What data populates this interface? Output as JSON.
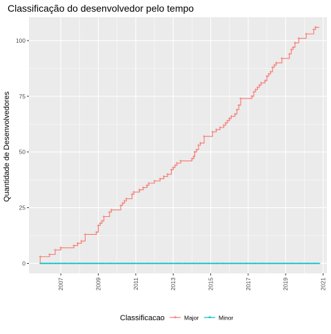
{
  "chart_data": {
    "type": "line",
    "title": "Classificação do desenvolvedor pelo tempo",
    "xlabel": "",
    "ylabel": "Quantidade de Desenvolvedores",
    "xlim": [
      2005.3,
      2021.2
    ],
    "ylim": [
      -4.5,
      110.5
    ],
    "x_ticks": [
      "2007",
      "2009",
      "2011",
      "2013",
      "2015",
      "2017",
      "2019",
      "2021"
    ],
    "y_ticks": [
      "0",
      "25",
      "50",
      "75",
      "100"
    ],
    "grid": true,
    "legend": {
      "title": "Classificacao",
      "position": "bottom"
    },
    "series": [
      {
        "name": "Major",
        "color": "#F8766D",
        "points": [
          [
            2005.9,
            0
          ],
          [
            2005.9,
            3
          ],
          [
            2006.4,
            3
          ],
          [
            2006.4,
            4
          ],
          [
            2006.7,
            4
          ],
          [
            2006.7,
            6
          ],
          [
            2007.0,
            6
          ],
          [
            2007.0,
            7
          ],
          [
            2007.7,
            7
          ],
          [
            2007.7,
            8
          ],
          [
            2007.9,
            8
          ],
          [
            2007.9,
            9
          ],
          [
            2008.1,
            9
          ],
          [
            2008.1,
            10
          ],
          [
            2008.3,
            10
          ],
          [
            2008.3,
            13
          ],
          [
            2008.9,
            13
          ],
          [
            2008.9,
            14
          ],
          [
            2009.0,
            14
          ],
          [
            2009.0,
            17
          ],
          [
            2009.1,
            17
          ],
          [
            2009.1,
            18
          ],
          [
            2009.2,
            18
          ],
          [
            2009.2,
            19
          ],
          [
            2009.3,
            19
          ],
          [
            2009.3,
            21
          ],
          [
            2009.6,
            21
          ],
          [
            2009.6,
            23
          ],
          [
            2009.7,
            23
          ],
          [
            2009.7,
            24
          ],
          [
            2010.2,
            24
          ],
          [
            2010.2,
            26
          ],
          [
            2010.3,
            26
          ],
          [
            2010.3,
            27
          ],
          [
            2010.4,
            27
          ],
          [
            2010.4,
            28
          ],
          [
            2010.5,
            28
          ],
          [
            2010.5,
            29
          ],
          [
            2010.8,
            29
          ],
          [
            2010.8,
            31
          ],
          [
            2010.9,
            31
          ],
          [
            2010.9,
            32
          ],
          [
            2011.2,
            32
          ],
          [
            2011.2,
            33
          ],
          [
            2011.4,
            33
          ],
          [
            2011.4,
            34
          ],
          [
            2011.6,
            34
          ],
          [
            2011.6,
            35
          ],
          [
            2011.7,
            35
          ],
          [
            2011.7,
            36
          ],
          [
            2012.0,
            36
          ],
          [
            2012.0,
            37
          ],
          [
            2012.3,
            37
          ],
          [
            2012.3,
            38
          ],
          [
            2012.5,
            38
          ],
          [
            2012.5,
            39
          ],
          [
            2012.7,
            39
          ],
          [
            2012.7,
            40
          ],
          [
            2012.9,
            40
          ],
          [
            2012.9,
            42
          ],
          [
            2013.0,
            42
          ],
          [
            2013.0,
            43
          ],
          [
            2013.1,
            43
          ],
          [
            2013.1,
            44
          ],
          [
            2013.2,
            44
          ],
          [
            2013.2,
            45
          ],
          [
            2013.4,
            45
          ],
          [
            2013.4,
            46
          ],
          [
            2014.0,
            46
          ],
          [
            2014.0,
            47
          ],
          [
            2014.1,
            47
          ],
          [
            2014.1,
            48
          ],
          [
            2014.15,
            48
          ],
          [
            2014.15,
            50
          ],
          [
            2014.25,
            50
          ],
          [
            2014.25,
            51
          ],
          [
            2014.35,
            51
          ],
          [
            2014.35,
            53
          ],
          [
            2014.45,
            53
          ],
          [
            2014.45,
            54
          ],
          [
            2014.65,
            54
          ],
          [
            2014.65,
            57
          ],
          [
            2015.1,
            57
          ],
          [
            2015.1,
            59
          ],
          [
            2015.3,
            59
          ],
          [
            2015.3,
            60
          ],
          [
            2015.5,
            60
          ],
          [
            2015.5,
            61
          ],
          [
            2015.7,
            61
          ],
          [
            2015.7,
            62
          ],
          [
            2015.8,
            62
          ],
          [
            2015.8,
            63
          ],
          [
            2015.9,
            63
          ],
          [
            2015.9,
            64
          ],
          [
            2016.0,
            64
          ],
          [
            2016.0,
            65
          ],
          [
            2016.1,
            65
          ],
          [
            2016.1,
            66
          ],
          [
            2016.3,
            66
          ],
          [
            2016.3,
            67
          ],
          [
            2016.4,
            67
          ],
          [
            2016.4,
            69
          ],
          [
            2016.5,
            69
          ],
          [
            2016.5,
            71
          ],
          [
            2016.6,
            71
          ],
          [
            2016.6,
            74
          ],
          [
            2017.2,
            74
          ],
          [
            2017.2,
            75
          ],
          [
            2017.3,
            75
          ],
          [
            2017.3,
            77
          ],
          [
            2017.4,
            77
          ],
          [
            2017.4,
            78
          ],
          [
            2017.5,
            78
          ],
          [
            2017.5,
            79
          ],
          [
            2017.6,
            79
          ],
          [
            2017.6,
            80
          ],
          [
            2017.7,
            80
          ],
          [
            2017.7,
            81
          ],
          [
            2017.9,
            81
          ],
          [
            2017.9,
            82
          ],
          [
            2018.0,
            82
          ],
          [
            2018.0,
            84
          ],
          [
            2018.1,
            84
          ],
          [
            2018.1,
            85
          ],
          [
            2018.2,
            85
          ],
          [
            2018.2,
            86
          ],
          [
            2018.3,
            86
          ],
          [
            2018.3,
            88
          ],
          [
            2018.4,
            88
          ],
          [
            2018.4,
            89
          ],
          [
            2018.5,
            89
          ],
          [
            2018.5,
            90
          ],
          [
            2018.8,
            90
          ],
          [
            2018.8,
            92
          ],
          [
            2019.2,
            92
          ],
          [
            2019.2,
            94
          ],
          [
            2019.3,
            94
          ],
          [
            2019.3,
            96
          ],
          [
            2019.4,
            96
          ],
          [
            2019.4,
            97
          ],
          [
            2019.5,
            97
          ],
          [
            2019.5,
            99
          ],
          [
            2019.7,
            99
          ],
          [
            2019.7,
            101
          ],
          [
            2020.1,
            101
          ],
          [
            2020.1,
            103
          ],
          [
            2020.5,
            103
          ],
          [
            2020.5,
            105
          ],
          [
            2020.6,
            105
          ],
          [
            2020.6,
            106
          ],
          [
            2020.8,
            106
          ]
        ]
      },
      {
        "name": "Minor",
        "color": "#00BFC4",
        "points": [
          [
            2005.9,
            0
          ],
          [
            2020.8,
            0
          ]
        ]
      }
    ]
  }
}
